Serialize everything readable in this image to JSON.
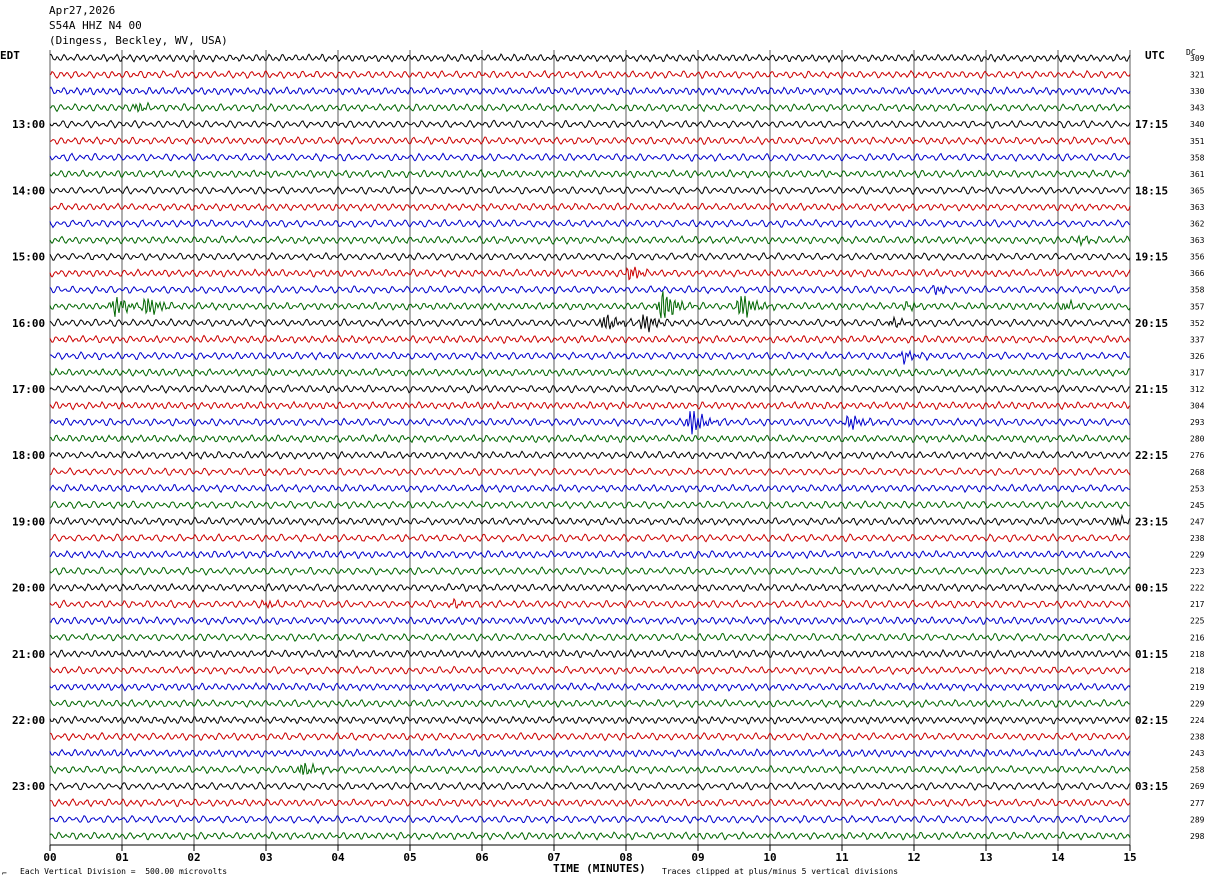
{
  "header": {
    "date": "Apr27,2026",
    "station": "S54A HHZ N4 00",
    "location": "(Dingess, Beckley, WV, USA)"
  },
  "labels": {
    "left_tz": "EDT",
    "right_tz": "UTC",
    "dc": "DC",
    "footer_left": "Each Vertical Division =  500.00 microvolts",
    "footer_right": "Traces clipped at plus/minus 5 vertical divisions",
    "corner_mark": "⌐"
  },
  "chart_data": {
    "type": "line",
    "title": "",
    "xlabel": "TIME (MINUTES)",
    "ylabel": "",
    "x_ticks": [
      "00",
      "01",
      "02",
      "03",
      "04",
      "05",
      "06",
      "07",
      "08",
      "09",
      "10",
      "11",
      "12",
      "13",
      "14",
      "15"
    ],
    "xlim": [
      0,
      15
    ],
    "grid": true,
    "trace_colors": [
      "#000000",
      "#cc0000",
      "#0000cc",
      "#006600"
    ],
    "left_hour_labels": [
      "13:00",
      "14:00",
      "15:00",
      "16:00",
      "17:00",
      "18:00",
      "19:00",
      "20:00",
      "21:00",
      "22:00",
      "23:00"
    ],
    "right_hour_labels": [
      "17:15",
      "18:15",
      "19:15",
      "20:15",
      "21:15",
      "22:15",
      "23:15",
      "00:15",
      "01:15",
      "02:15",
      "03:15"
    ],
    "dc_offsets": [
      309,
      321,
      330,
      343,
      340,
      351,
      358,
      361,
      365,
      363,
      362,
      363,
      356,
      366,
      358,
      357,
      352,
      337,
      326,
      317,
      312,
      304,
      293,
      280,
      276,
      268,
      253,
      245,
      247,
      238,
      229,
      223,
      222,
      217,
      225,
      216,
      218,
      218,
      219,
      229,
      224,
      238,
      243,
      258,
      269,
      277,
      289,
      298
    ],
    "events": [
      {
        "trace": 3,
        "minute": 1.2,
        "amp": 0.6
      },
      {
        "trace": 11,
        "minute": 14.3,
        "amp": 0.5
      },
      {
        "trace": 13,
        "minute": 8.05,
        "amp": 0.9
      },
      {
        "trace": 14,
        "minute": 12.3,
        "amp": 0.6
      },
      {
        "trace": 15,
        "minute": 0.9,
        "amp": 1.4
      },
      {
        "trace": 15,
        "minute": 1.35,
        "amp": 1.3
      },
      {
        "trace": 15,
        "minute": 8.5,
        "amp": 2.4
      },
      {
        "trace": 15,
        "minute": 9.6,
        "amp": 1.8
      },
      {
        "trace": 15,
        "minute": 11.9,
        "amp": 0.5
      },
      {
        "trace": 15,
        "minute": 14.1,
        "amp": 0.6
      },
      {
        "trace": 16,
        "minute": 7.7,
        "amp": 1.2
      },
      {
        "trace": 16,
        "minute": 8.25,
        "amp": 1.3
      },
      {
        "trace": 16,
        "minute": 11.7,
        "amp": 0.6
      },
      {
        "trace": 18,
        "minute": 11.85,
        "amp": 0.8
      },
      {
        "trace": 22,
        "minute": 8.9,
        "amp": 1.8
      },
      {
        "trace": 22,
        "minute": 11.1,
        "amp": 1.0
      },
      {
        "trace": 28,
        "minute": 14.8,
        "amp": 0.7
      },
      {
        "trace": 33,
        "minute": 3.0,
        "amp": 0.5
      },
      {
        "trace": 33,
        "minute": 5.6,
        "amp": 0.5
      },
      {
        "trace": 43,
        "minute": 3.5,
        "amp": 1.0
      }
    ]
  }
}
